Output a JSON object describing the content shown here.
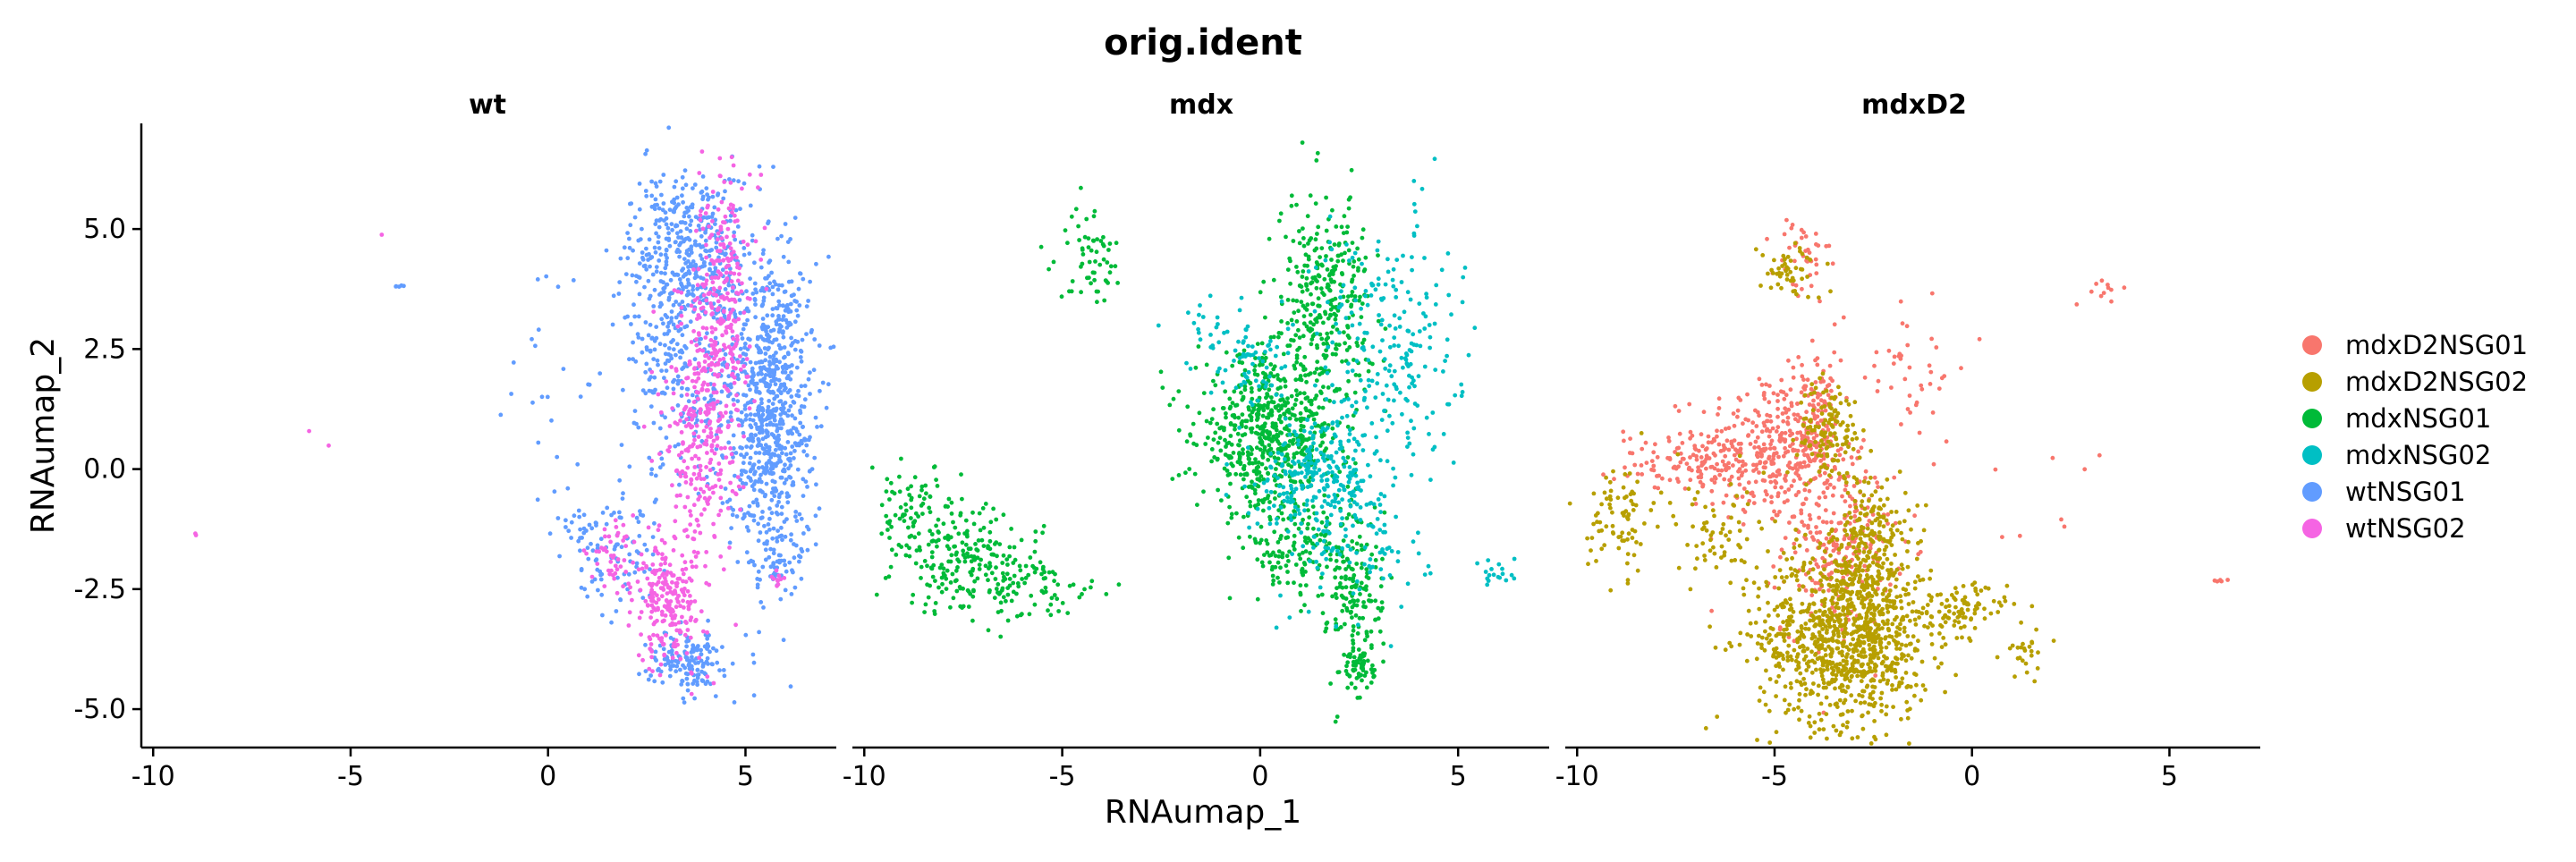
{
  "chart_data": {
    "type": "scatter",
    "title": "orig.ident",
    "xlabel": "RNAumap_1",
    "ylabel": "RNAumap_2",
    "xlim": [
      -10.3,
      7.3
    ],
    "ylim": [
      -5.8,
      7.2
    ],
    "x_ticks": [
      -10,
      -5,
      0,
      5
    ],
    "x_tick_labels": [
      "-10",
      "-5",
      "0",
      "5"
    ],
    "y_ticks": [
      5.0,
      2.5,
      0.0,
      -2.5,
      -5.0
    ],
    "y_tick_labels": [
      "5.0",
      "2.5",
      "0.0",
      "-2.5",
      "-5.0"
    ],
    "grid": false,
    "legend_position": "right",
    "panels": [
      "wt",
      "mdx",
      "mdxD2"
    ],
    "series": [
      {
        "name": "mdxD2NSG01",
        "color": "#F8766D",
        "panel": "mdxD2",
        "clusters": [
          {
            "cx": -5.2,
            "cy": 0.4,
            "sx": 0.9,
            "sy": 0.8,
            "n": 300
          },
          {
            "cx": -4.0,
            "cy": 0.9,
            "sx": 0.35,
            "sy": 0.7,
            "n": 140
          },
          {
            "cx": -7.0,
            "cy": 0.1,
            "sx": 1.0,
            "sy": 0.3,
            "n": 110
          },
          {
            "cx": -3.4,
            "cy": -1.6,
            "sx": 0.7,
            "sy": 0.9,
            "n": 240
          },
          {
            "cx": -4.3,
            "cy": 4.3,
            "sx": 0.35,
            "sy": 0.5,
            "n": 40
          },
          {
            "cx": -1.8,
            "cy": 2.2,
            "sx": 0.9,
            "sy": 0.8,
            "n": 45
          },
          {
            "cx": 3.6,
            "cy": 3.7,
            "sx": 0.3,
            "sy": 0.2,
            "n": 10
          },
          {
            "cx": 6.3,
            "cy": -2.3,
            "sx": 0.1,
            "sy": 0.05,
            "n": 6
          },
          {
            "cx": 1.0,
            "cy": 0.0,
            "sx": 1.0,
            "sy": 1.0,
            "n": 10
          }
        ]
      },
      {
        "name": "mdxD2NSG02",
        "color": "#B79F00",
        "panel": "mdxD2",
        "clusters": [
          {
            "cx": -3.2,
            "cy": -3.5,
            "sx": 1.1,
            "sy": 0.9,
            "n": 950
          },
          {
            "cx": -2.6,
            "cy": -1.8,
            "sx": 0.5,
            "sy": 0.9,
            "n": 260
          },
          {
            "cx": -3.6,
            "cy": 0.8,
            "sx": 0.4,
            "sy": 0.5,
            "n": 130
          },
          {
            "cx": -8.9,
            "cy": -1.0,
            "sx": 0.4,
            "sy": 0.6,
            "n": 80
          },
          {
            "cx": -6.5,
            "cy": -1.4,
            "sx": 0.9,
            "sy": 0.6,
            "n": 70
          },
          {
            "cx": -4.6,
            "cy": 4.1,
            "sx": 0.4,
            "sy": 0.3,
            "n": 50
          },
          {
            "cx": -0.3,
            "cy": -2.9,
            "sx": 0.6,
            "sy": 0.25,
            "n": 90
          },
          {
            "cx": 1.4,
            "cy": -3.8,
            "sx": 0.3,
            "sy": 0.3,
            "n": 25
          }
        ]
      },
      {
        "name": "mdxNSG01",
        "color": "#00BA38",
        "panel": "mdx",
        "clusters": [
          {
            "cx": 0.2,
            "cy": 0.7,
            "sx": 0.9,
            "sy": 0.8,
            "n": 600
          },
          {
            "cx": 1.6,
            "cy": 3.5,
            "sx": 0.6,
            "sy": 1.1,
            "n": 320
          },
          {
            "cx": 2.4,
            "cy": -2.5,
            "sx": 0.35,
            "sy": 1.0,
            "n": 170
          },
          {
            "cx": 2.5,
            "cy": -4.1,
            "sx": 0.2,
            "sy": 0.25,
            "n": 60
          },
          {
            "cx": -7.3,
            "cy": -2.0,
            "sx": 0.9,
            "sy": 0.5,
            "n": 200
          },
          {
            "cx": -8.7,
            "cy": -1.0,
            "sx": 0.6,
            "sy": 0.5,
            "n": 90
          },
          {
            "cx": -4.3,
            "cy": 4.5,
            "sx": 0.4,
            "sy": 0.5,
            "n": 60
          },
          {
            "cx": -5.5,
            "cy": -2.6,
            "sx": 0.8,
            "sy": 0.4,
            "n": 60
          },
          {
            "cx": 0.8,
            "cy": -1.7,
            "sx": 0.6,
            "sy": 0.5,
            "n": 120
          }
        ]
      },
      {
        "name": "mdxNSG02",
        "color": "#00BFC4",
        "panel": "mdx",
        "clusters": [
          {
            "cx": 1.5,
            "cy": -0.1,
            "sx": 0.8,
            "sy": 0.6,
            "n": 260
          },
          {
            "cx": 3.2,
            "cy": 2.6,
            "sx": 0.9,
            "sy": 1.4,
            "n": 230
          },
          {
            "cx": -0.3,
            "cy": 2.2,
            "sx": 0.5,
            "sy": 0.5,
            "n": 70
          },
          {
            "cx": 2.6,
            "cy": -1.5,
            "sx": 0.9,
            "sy": 0.9,
            "n": 90
          },
          {
            "cx": 6.0,
            "cy": -2.2,
            "sx": 0.25,
            "sy": 0.2,
            "n": 18
          },
          {
            "cx": -1.2,
            "cy": 3.2,
            "sx": 0.5,
            "sy": 0.4,
            "n": 15
          }
        ]
      },
      {
        "name": "wtNSG01",
        "color": "#619CFF",
        "panel": "wt",
        "clusters": [
          {
            "cx": 5.6,
            "cy": 1.3,
            "sx": 0.55,
            "sy": 1.7,
            "n": 800
          },
          {
            "cx": 3.6,
            "cy": 4.6,
            "sx": 0.75,
            "sy": 0.8,
            "n": 350
          },
          {
            "cx": 3.4,
            "cy": 2.2,
            "sx": 0.8,
            "sy": 1.3,
            "n": 300
          },
          {
            "cx": 3.5,
            "cy": -4.0,
            "sx": 0.45,
            "sy": 0.3,
            "n": 150
          },
          {
            "cx": 1.6,
            "cy": -1.8,
            "sx": 0.7,
            "sy": 0.6,
            "n": 110
          },
          {
            "cx": 5.8,
            "cy": -2.1,
            "sx": 0.3,
            "sy": 0.2,
            "n": 30
          },
          {
            "cx": 0.0,
            "cy": 2.0,
            "sx": 0.6,
            "sy": 1.4,
            "n": 20
          },
          {
            "cx": -3.8,
            "cy": 3.8,
            "sx": 0.06,
            "sy": 0.06,
            "n": 5
          }
        ]
      },
      {
        "name": "wtNSG02",
        "color": "#F564E3",
        "panel": "wt",
        "clusters": [
          {
            "cx": 4.4,
            "cy": 3.6,
            "sx": 0.35,
            "sy": 1.3,
            "n": 260
          },
          {
            "cx": 3.9,
            "cy": 0.8,
            "sx": 0.45,
            "sy": 1.3,
            "n": 260
          },
          {
            "cx": 3.1,
            "cy": -2.7,
            "sx": 0.45,
            "sy": 0.7,
            "n": 230
          },
          {
            "cx": 1.8,
            "cy": -1.9,
            "sx": 0.4,
            "sy": 0.4,
            "n": 50
          },
          {
            "cx": 5.8,
            "cy": -2.3,
            "sx": 0.15,
            "sy": 0.1,
            "n": 10
          },
          {
            "cx": -6.0,
            "cy": 0.6,
            "sx": 0.3,
            "sy": 0.3,
            "n": 2
          },
          {
            "cx": -8.9,
            "cy": -1.4,
            "sx": 0.05,
            "sy": 0.05,
            "n": 2
          },
          {
            "cx": -4.2,
            "cy": 4.9,
            "sx": 0.05,
            "sy": 0.05,
            "n": 1
          }
        ]
      }
    ]
  }
}
